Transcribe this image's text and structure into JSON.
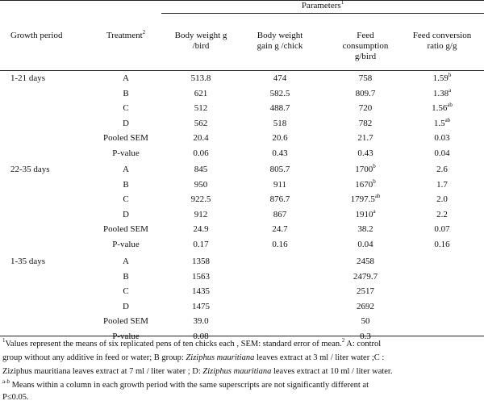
{
  "header": {
    "parameters": "Parameters",
    "parameters_sup": "1",
    "growth_period": "Growth period",
    "treatment": "Treatment",
    "treatment_sup": "2",
    "bw_line1": "Body weight g",
    "bw_line2": "/bird",
    "bwg_line1": "Body weight",
    "bwg_line2": "gain g /chick",
    "fc_line1": "Feed",
    "fc_line2": "consumption",
    "fc_line3": "g/bird",
    "fcr_line1": "Feed conversion",
    "fcr_line2": "ratio g/g"
  },
  "sections": [
    {
      "period": "1-21 days",
      "rows": [
        {
          "treatment": "A",
          "bw": "513.8",
          "bw_sup": "",
          "bwg": "474",
          "bwg_sup": "",
          "fc": "758",
          "fc_sup": "",
          "fcr": "1.59",
          "fcr_sup": "b"
        },
        {
          "treatment": "B",
          "bw": "621",
          "bw_sup": "",
          "bwg": "582.5",
          "bwg_sup": "",
          "fc": "809.7",
          "fc_sup": "",
          "fcr": "1.38",
          "fcr_sup": "a"
        },
        {
          "treatment": "C",
          "bw": "512",
          "bw_sup": "",
          "bwg": "488.7",
          "bwg_sup": "",
          "fc": "720",
          "fc_sup": "",
          "fcr": "1.56",
          "fcr_sup": "ab"
        },
        {
          "treatment": "D",
          "bw": "562",
          "bw_sup": "",
          "bwg": "518",
          "bwg_sup": "",
          "fc": "782",
          "fc_sup": "",
          "fcr": "1.5",
          "fcr_sup": "ab"
        },
        {
          "treatment": "Pooled SEM",
          "bw": "20.4",
          "bw_sup": "",
          "bwg": "20.6",
          "bwg_sup": "",
          "fc": "21.7",
          "fc_sup": "",
          "fcr": "0.03",
          "fcr_sup": ""
        },
        {
          "treatment": "P-value",
          "bw": "0.06",
          "bw_sup": "",
          "bwg": "0.43",
          "bwg_sup": "",
          "fc": "0.43",
          "fc_sup": "",
          "fcr": "0.04",
          "fcr_sup": ""
        }
      ]
    },
    {
      "period": "22-35 days",
      "rows": [
        {
          "treatment": "A",
          "bw": "845",
          "bw_sup": "",
          "bwg": "805.7",
          "bwg_sup": "",
          "fc": "1700",
          "fc_sup": "b",
          "fcr": "2.6",
          "fcr_sup": ""
        },
        {
          "treatment": "B",
          "bw": "950",
          "bw_sup": "",
          "bwg": "911",
          "bwg_sup": "",
          "fc": "1670",
          "fc_sup": "b",
          "fcr": "1.7",
          "fcr_sup": ""
        },
        {
          "treatment": "C",
          "bw": "922.5",
          "bw_sup": "",
          "bwg": "876.7",
          "bwg_sup": "",
          "fc": "1797.5",
          "fc_sup": "ab",
          "fcr": "2.0",
          "fcr_sup": ""
        },
        {
          "treatment": "D",
          "bw": "912",
          "bw_sup": "",
          "bwg": "867",
          "bwg_sup": "",
          "fc": "1910",
          "fc_sup": "a",
          "fcr": "2.2",
          "fcr_sup": ""
        },
        {
          "treatment": "Pooled SEM",
          "bw": "24.9",
          "bw_sup": "",
          "bwg": "24.7",
          "bwg_sup": "",
          "fc": "38.2",
          "fc_sup": "",
          "fcr": "0.07",
          "fcr_sup": ""
        },
        {
          "treatment": "P-value",
          "bw": "0.17",
          "bw_sup": "",
          "bwg": "0.16",
          "bwg_sup": "",
          "fc": "0.04",
          "fc_sup": "",
          "fcr": "0.16",
          "fcr_sup": ""
        }
      ]
    },
    {
      "period": "1-35 days",
      "rows": [
        {
          "treatment": "A",
          "bw": "1358",
          "bw_sup": "",
          "bwg": "",
          "bwg_sup": "",
          "fc": "2458",
          "fc_sup": "",
          "fcr": "",
          "fcr_sup": ""
        },
        {
          "treatment": "B",
          "bw": "1563",
          "bw_sup": "",
          "bwg": "",
          "bwg_sup": "",
          "fc": "2479.7",
          "fc_sup": "",
          "fcr": "",
          "fcr_sup": ""
        },
        {
          "treatment": "C",
          "bw": "1435",
          "bw_sup": "",
          "bwg": "",
          "bwg_sup": "",
          "fc": "2517",
          "fc_sup": "",
          "fcr": "",
          "fcr_sup": ""
        },
        {
          "treatment": "D",
          "bw": "1475",
          "bw_sup": "",
          "bwg": "",
          "bwg_sup": "",
          "fc": "2692",
          "fc_sup": "",
          "fcr": "",
          "fcr_sup": ""
        },
        {
          "treatment": "Pooled SEM",
          "bw": "39.0",
          "bw_sup": "",
          "bwg": "",
          "bwg_sup": "",
          "fc": "50",
          "fc_sup": "",
          "fcr": "",
          "fcr_sup": ""
        },
        {
          "treatment": "P-value",
          "bw": "0.08",
          "bw_sup": "",
          "bwg": "",
          "bwg_sup": "",
          "fc": "0.3",
          "fc_sup": "",
          "fcr": "",
          "fcr_sup": ""
        }
      ]
    }
  ],
  "footnote": {
    "sup1": "1",
    "l1a": "Values represent the means of  six replicated pens of ten chicks each , SEM: standard error of mean.",
    "sup2": "2",
    "l1b": " A: control",
    "l2a": "group without any additive in feed or water; B group: ",
    "sp1": "Ziziphus mauritiana",
    "l2b": " leaves extract at 3 ml / liter water ;C :",
    "l3a": "Ziziphus mauritiana leaves extract at 7 ml / liter water ; D: ",
    "sp2": "Ziziphus mauritiana",
    "l3b": " leaves extract at 10 ml / liter water.",
    "sup_ab": "a-b",
    "l4": " Means within  a column in each growth period with the same superscripts are not significantly different at",
    "l5": "P≤0.05."
  }
}
